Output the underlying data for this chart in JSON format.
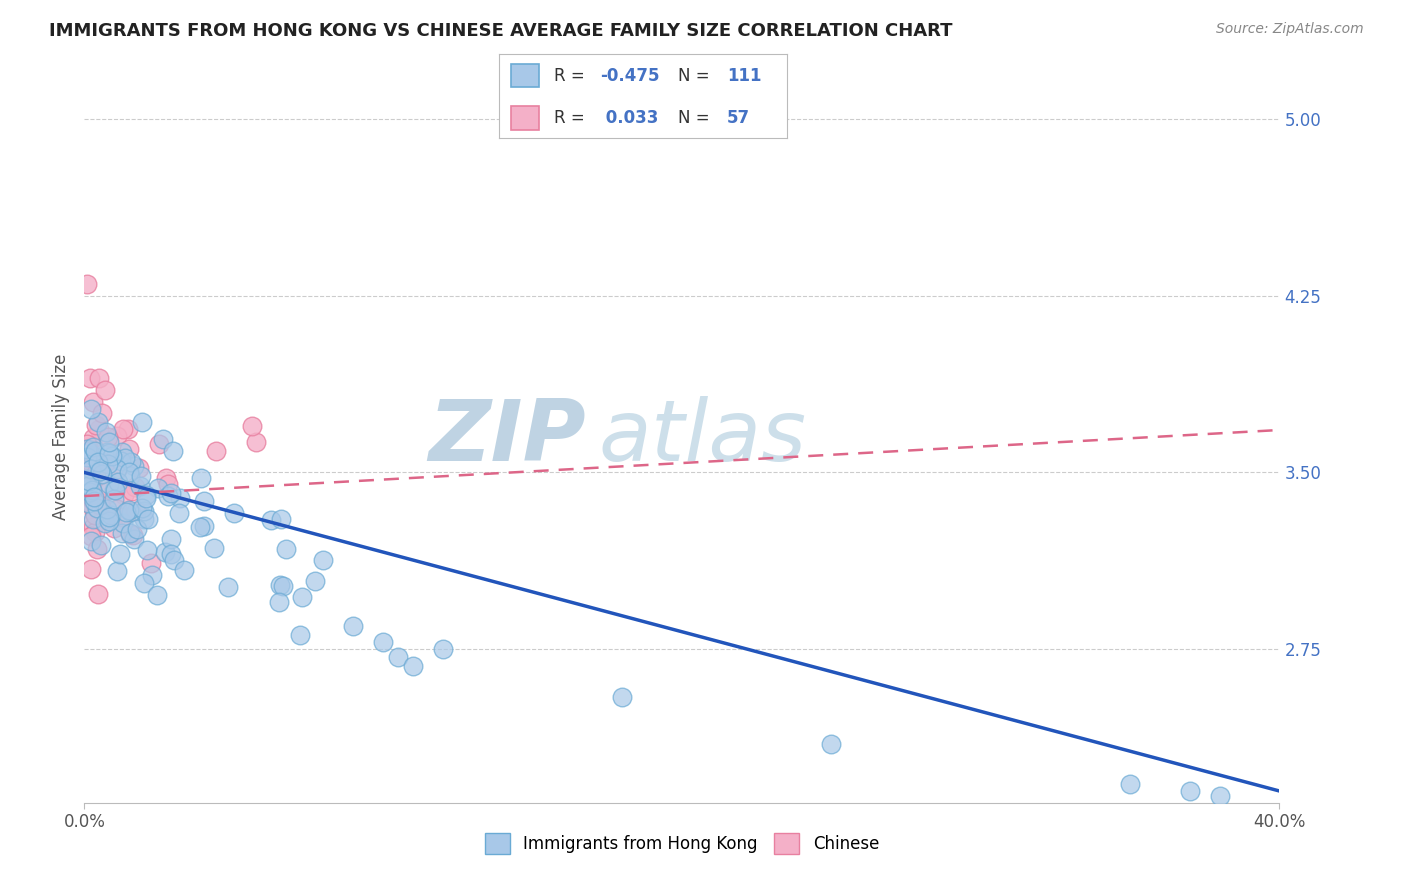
{
  "title": "IMMIGRANTS FROM HONG KONG VS CHINESE AVERAGE FAMILY SIZE CORRELATION CHART",
  "source": "Source: ZipAtlas.com",
  "ylabel": "Average Family Size",
  "xlim": [
    0.0,
    0.4
  ],
  "ylim": [
    2.1,
    5.2
  ],
  "yticks": [
    2.75,
    3.5,
    4.25,
    5.0
  ],
  "color_hk": "#a8c8e8",
  "color_cn": "#f4b0c8",
  "color_hk_edge": "#6aaad4",
  "color_cn_edge": "#e880a0",
  "trendline_hk_color": "#2255bb",
  "trendline_cn_color": "#dd6688",
  "watermark_color": "#c8dae8",
  "background_color": "#ffffff",
  "legend_label_hk": "Immigrants from Hong Kong",
  "legend_label_cn": "Chinese"
}
